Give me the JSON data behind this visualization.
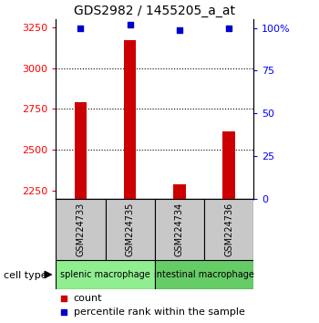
{
  "title": "GDS2982 / 1455205_a_at",
  "samples": [
    "GSM224733",
    "GSM224735",
    "GSM224734",
    "GSM224736"
  ],
  "counts": [
    2790,
    3170,
    2290,
    2615
  ],
  "percentile_ranks": [
    95,
    97,
    94,
    95
  ],
  "ylim_left": [
    2200,
    3300
  ],
  "ylim_right": [
    0,
    105
  ],
  "yticks_left": [
    2250,
    2500,
    2750,
    3000,
    3250
  ],
  "yticks_right": [
    0,
    25,
    50,
    75,
    100
  ],
  "ytick_labels_right": [
    "0",
    "25",
    "50",
    "75",
    "100%"
  ],
  "bar_color": "#CC0000",
  "dot_color": "#0000CC",
  "bar_width": 0.25,
  "grid_ticks": [
    2500,
    2750,
    3000
  ],
  "sample_box_color": "#C8C8C8",
  "cell_type_label": "cell type",
  "group1_color": "#90EE90",
  "group2_color": "#66CC66",
  "group1_label": "splenic macrophage",
  "group2_label": "intestinal macrophage"
}
